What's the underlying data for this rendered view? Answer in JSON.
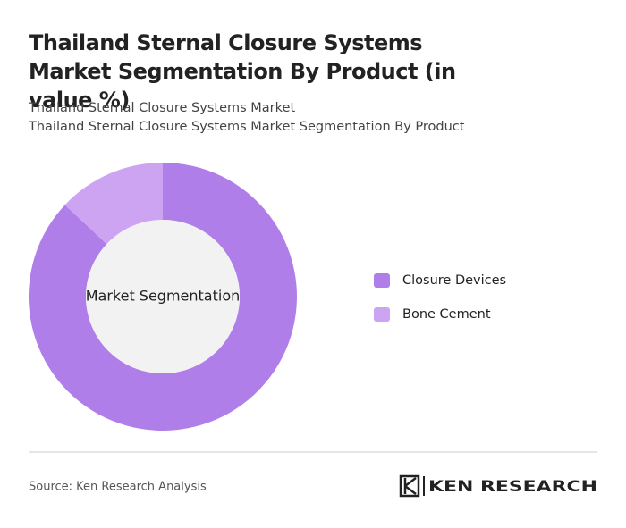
{
  "chart_data": {
    "type": "donut",
    "title": "Thailand Sternal Closure Systems Market Segmentation By Product (in value %)",
    "subtitle": [
      "Thailand Sternal Closure Systems Market",
      "Thailand Sternal Closure Systems Market Segmentation By Product"
    ],
    "center_label": "Market Segmentation",
    "categories": [
      "Closure Devices",
      "Bone Cement"
    ],
    "values": [
      87,
      13
    ],
    "colors": [
      "#b07ee9",
      "#cda4f2"
    ],
    "legend": "right"
  },
  "footer": {
    "source": "Source: Ken Research Analysis",
    "logo": "KEN RESEARCH"
  }
}
